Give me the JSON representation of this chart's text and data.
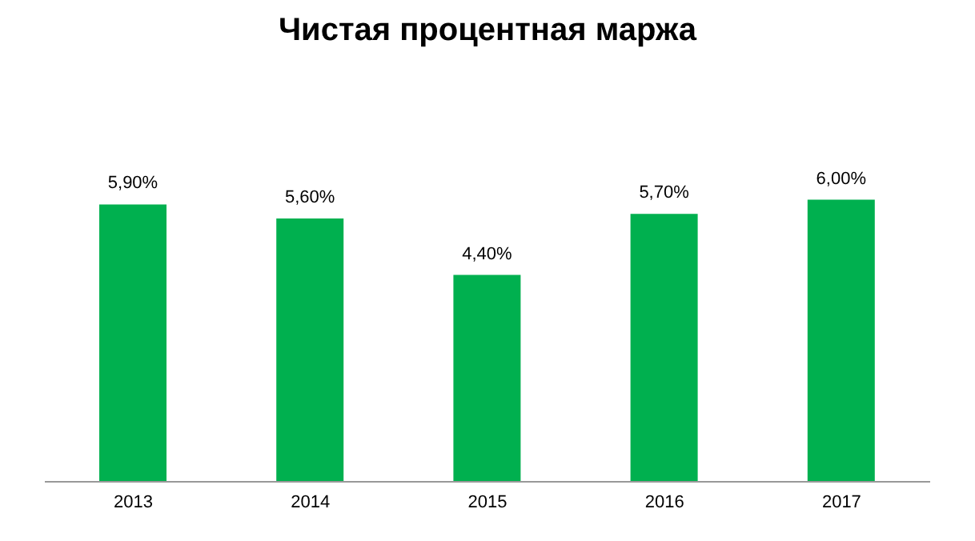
{
  "chart_data": {
    "type": "bar",
    "title": "Чистая процентная маржа",
    "categories": [
      "2013",
      "2014",
      "2015",
      "2016",
      "2017"
    ],
    "values": [
      5.9,
      5.6,
      4.4,
      5.7,
      6.0
    ],
    "value_labels": [
      "5,90%",
      "5,60%",
      "4,40%",
      "5,70%",
      "6,00%"
    ],
    "color": "#00b04f"
  }
}
